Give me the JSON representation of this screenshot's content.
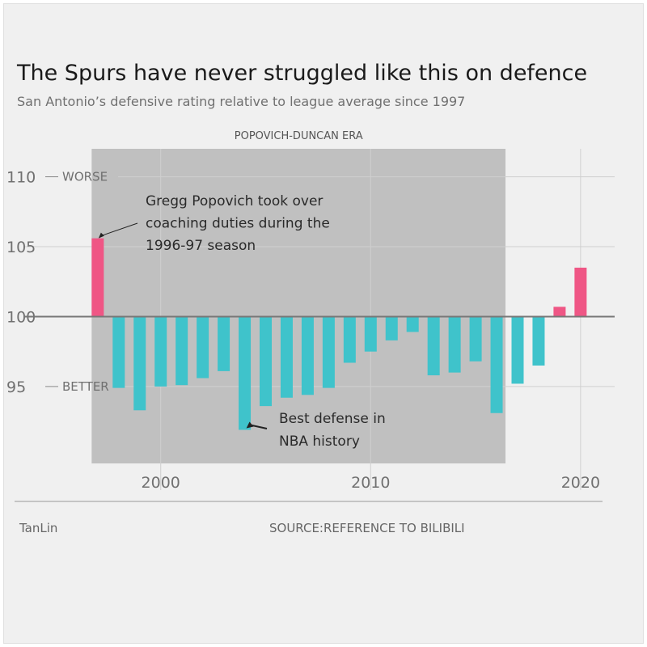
{
  "header": {
    "title": "The Spurs have never struggled like this on defence",
    "subtitle": "San Antonio’s defensive rating relative to league average since 1997"
  },
  "footer": {
    "author": "TanLin",
    "source": "SOURCE:REFERENCE TO BILIBILI"
  },
  "chart_data": {
    "type": "bar",
    "x": [
      1997,
      1998,
      1999,
      2000,
      2001,
      2002,
      2003,
      2004,
      2005,
      2006,
      2007,
      2008,
      2009,
      2010,
      2011,
      2012,
      2013,
      2014,
      2015,
      2016,
      2017,
      2018,
      2019,
      2020
    ],
    "values": [
      105.6,
      94.9,
      93.3,
      95.0,
      95.1,
      95.6,
      96.1,
      91.9,
      93.6,
      94.2,
      94.4,
      94.9,
      96.7,
      97.5,
      98.3,
      98.9,
      95.8,
      96.0,
      96.8,
      93.1,
      95.2,
      96.5,
      100.7,
      103.5
    ],
    "baseline": 100,
    "colors": {
      "above": "#ef5685",
      "below": "#3fc3cb",
      "era_band": "#c0c0c0",
      "baseline": "#777777",
      "grid": "#cfcfcf"
    },
    "ylim": [
      89.5,
      112
    ],
    "xlim": [
      1993.5,
      2021.7
    ],
    "y_ticks": [
      95,
      100,
      105,
      110
    ],
    "y_tick_labels": {
      "110": "WORSE",
      "95": "BETTER"
    },
    "x_ticks": [
      2000,
      2010,
      2020
    ],
    "era": {
      "label": "POPOVICH-DUNCAN ERA",
      "start": 1997,
      "end": 2016
    },
    "annotations": [
      {
        "lines": [
          "Gregg Popovich took over",
          "coaching duties during the",
          "1996-97 season"
        ],
        "points_to": 1997
      },
      {
        "lines": [
          "Best defense in",
          "NBA history"
        ],
        "points_to": 2004
      }
    ],
    "grid": true
  }
}
